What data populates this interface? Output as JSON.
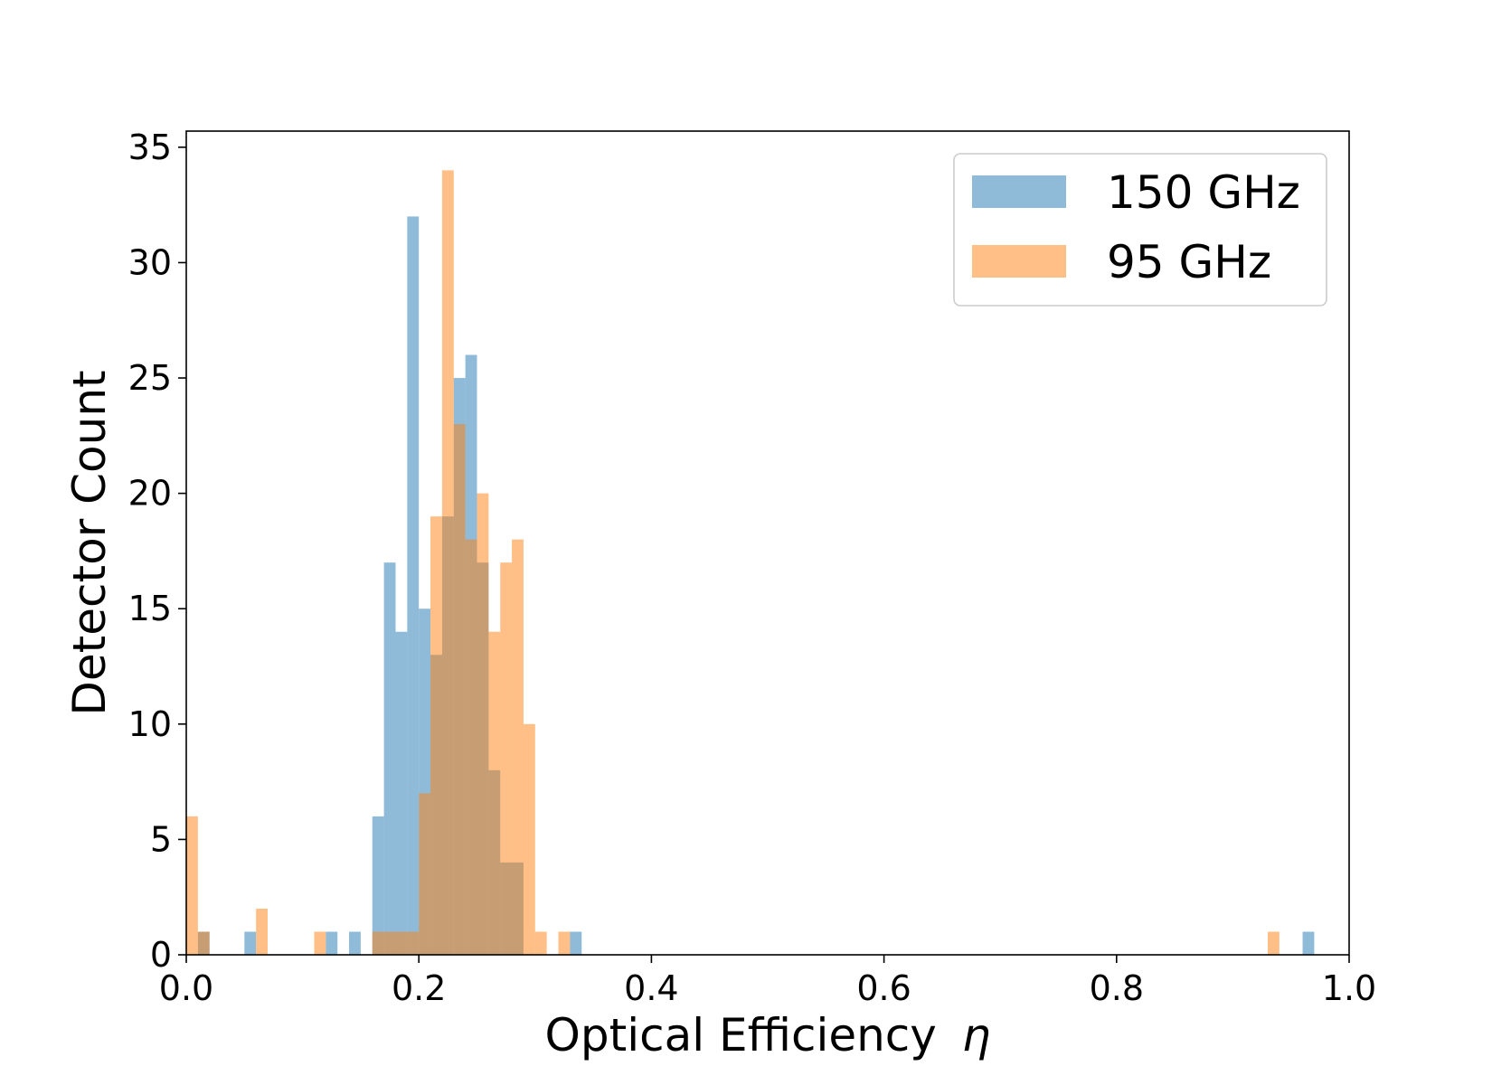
{
  "chart_data": {
    "type": "bar",
    "subtype": "histogram",
    "xlabel": "Optical Efficiency",
    "xlabel_symbol": "η",
    "ylabel": "Detector Count",
    "xlim": [
      0.0,
      1.0
    ],
    "ylim": [
      0,
      35.7
    ],
    "bin_width": 0.01,
    "x_ticks": [
      "0.0",
      "0.2",
      "0.4",
      "0.6",
      "0.8",
      "1.0"
    ],
    "x_tick_values": [
      0.0,
      0.2,
      0.4,
      0.6,
      0.8,
      1.0
    ],
    "y_ticks": [
      "0",
      "5",
      "10",
      "15",
      "20",
      "25",
      "30",
      "35"
    ],
    "y_tick_values": [
      0,
      5,
      10,
      15,
      20,
      25,
      30,
      35
    ],
    "grid": false,
    "legend_position": "top-right",
    "series": [
      {
        "name": "150 GHz",
        "color": "#1f77b4",
        "opacity": 0.5,
        "bins": [
          {
            "x0": 0.01,
            "count": 1
          },
          {
            "x0": 0.05,
            "count": 1
          },
          {
            "x0": 0.12,
            "count": 1
          },
          {
            "x0": 0.14,
            "count": 1
          },
          {
            "x0": 0.16,
            "count": 6
          },
          {
            "x0": 0.17,
            "count": 17
          },
          {
            "x0": 0.18,
            "count": 14
          },
          {
            "x0": 0.19,
            "count": 32
          },
          {
            "x0": 0.2,
            "count": 15
          },
          {
            "x0": 0.21,
            "count": 13
          },
          {
            "x0": 0.22,
            "count": 19
          },
          {
            "x0": 0.23,
            "count": 25
          },
          {
            "x0": 0.24,
            "count": 26
          },
          {
            "x0": 0.25,
            "count": 17
          },
          {
            "x0": 0.26,
            "count": 8
          },
          {
            "x0": 0.27,
            "count": 4
          },
          {
            "x0": 0.28,
            "count": 4
          },
          {
            "x0": 0.33,
            "count": 1
          },
          {
            "x0": 0.96,
            "count": 1
          }
        ]
      },
      {
        "name": "95 GHz",
        "color": "#ff7f0e",
        "opacity": 0.5,
        "bins": [
          {
            "x0": 0.0,
            "count": 6
          },
          {
            "x0": 0.01,
            "count": 1
          },
          {
            "x0": 0.06,
            "count": 2
          },
          {
            "x0": 0.11,
            "count": 1
          },
          {
            "x0": 0.16,
            "count": 1
          },
          {
            "x0": 0.17,
            "count": 1
          },
          {
            "x0": 0.18,
            "count": 1
          },
          {
            "x0": 0.19,
            "count": 1
          },
          {
            "x0": 0.2,
            "count": 7
          },
          {
            "x0": 0.21,
            "count": 19
          },
          {
            "x0": 0.22,
            "count": 34
          },
          {
            "x0": 0.23,
            "count": 23
          },
          {
            "x0": 0.24,
            "count": 18
          },
          {
            "x0": 0.25,
            "count": 20
          },
          {
            "x0": 0.26,
            "count": 14
          },
          {
            "x0": 0.27,
            "count": 17
          },
          {
            "x0": 0.28,
            "count": 18
          },
          {
            "x0": 0.29,
            "count": 10
          },
          {
            "x0": 0.3,
            "count": 1
          },
          {
            "x0": 0.32,
            "count": 1
          },
          {
            "x0": 0.93,
            "count": 1
          }
        ]
      }
    ]
  }
}
